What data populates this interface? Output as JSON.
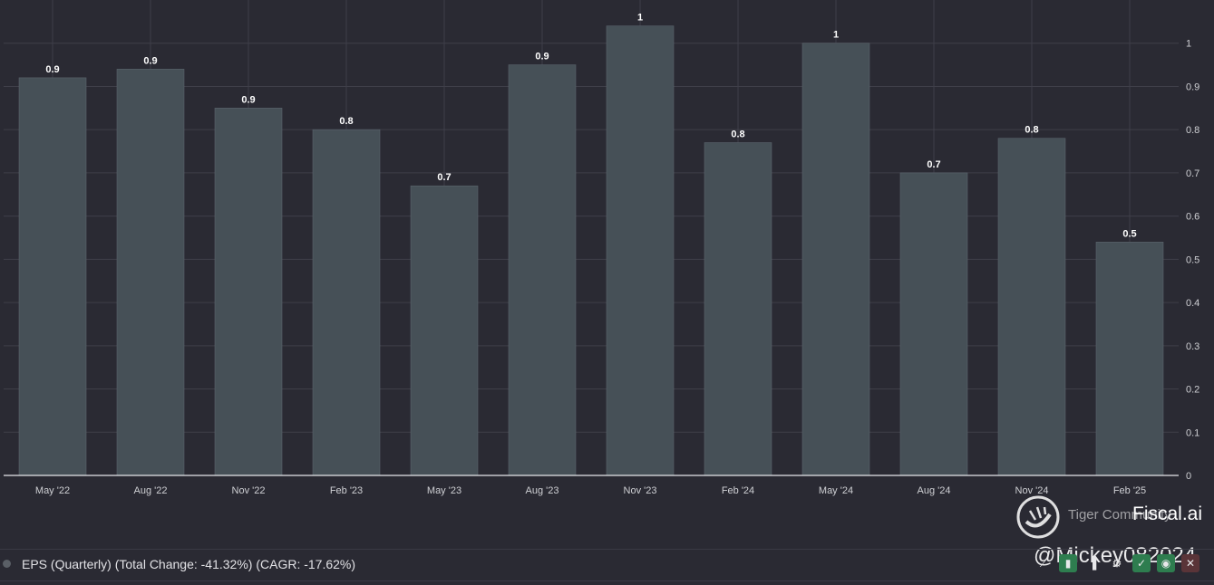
{
  "chart_data": {
    "type": "bar",
    "categories": [
      "May '22",
      "Aug '22",
      "Nov '22",
      "Feb '23",
      "May '23",
      "Aug '23",
      "Nov '23",
      "Feb '24",
      "May '24",
      "Aug '24",
      "Nov '24",
      "Feb '25"
    ],
    "values": [
      0.92,
      0.94,
      0.85,
      0.8,
      0.67,
      0.95,
      1.04,
      0.77,
      1.0,
      0.7,
      0.78,
      0.54
    ],
    "data_labels": [
      "0.9",
      "0.9",
      "0.9",
      "0.8",
      "0.7",
      "0.9",
      "1",
      "0.8",
      "1",
      "0.7",
      "0.8",
      "0.5"
    ],
    "y_ticks": [
      0,
      0.1,
      0.2,
      0.3,
      0.4,
      0.5,
      0.6,
      0.7,
      0.8,
      0.9,
      1
    ],
    "y_tick_labels": [
      "0",
      "0.1",
      "0.2",
      "0.3",
      "0.4",
      "0.5",
      "0.6",
      "0.7",
      "0.8",
      "0.9",
      "1"
    ],
    "ylim": [
      0,
      1.1
    ],
    "grid": true,
    "y_axis_position": "right",
    "bar_color": "#465057",
    "background": "#2a2a33"
  },
  "legend": {
    "text": "EPS (Quarterly) (Total Change: -41.32%) (CAGR: -17.62%)"
  },
  "watermark": {
    "community": "Tiger Community",
    "brand": "Fiscal.ai",
    "handle": "@Mickey082024"
  },
  "toolbar": {
    "icons": [
      "line-chart-icon",
      "bar-chart-icon",
      "columns-icon",
      "settings-icon",
      "check-icon",
      "eye-icon",
      "close-icon"
    ]
  }
}
